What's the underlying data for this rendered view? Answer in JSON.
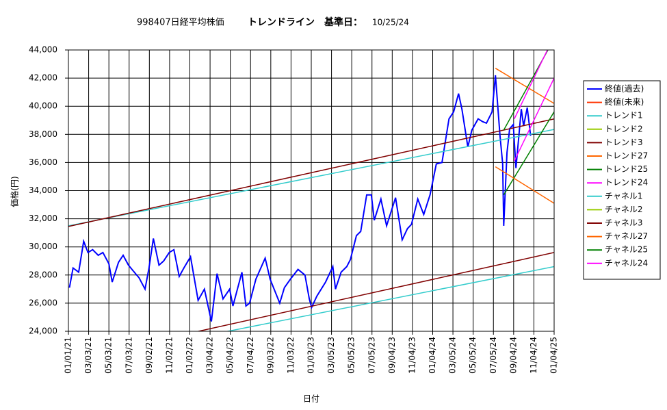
{
  "chart_data": {
    "type": "line",
    "title": "998407日経平均株価",
    "subtitle": "トレンドライン　基準日：",
    "base_date": "10/25/24",
    "x_label": "日付",
    "y_label": "価格(円)",
    "xlim": [
      "01/01/21",
      "01/04/25"
    ],
    "xticks": [
      "01/01/21",
      "03/03/21",
      "05/03/21",
      "07/03/21",
      "09/02/21",
      "11/02/21",
      "01/02/22",
      "03/04/22",
      "05/04/22",
      "07/04/22",
      "09/03/22",
      "11/03/22",
      "01/03/23",
      "03/05/23",
      "05/05/23",
      "07/05/23",
      "09/04/23",
      "11/04/23",
      "01/04/24",
      "03/05/24",
      "05/05/24",
      "07/05/24",
      "09/04/24",
      "11/04/24",
      "01/04/25"
    ],
    "ylim": [
      24000,
      44000
    ],
    "yticks": [
      {
        "value": 24000,
        "label": "24,000"
      },
      {
        "value": 26000,
        "label": "26,000"
      },
      {
        "value": 28000,
        "label": "28,000"
      },
      {
        "value": 30000,
        "label": "30,000"
      },
      {
        "value": 32000,
        "label": "32,000"
      },
      {
        "value": 34000,
        "label": "34,000"
      },
      {
        "value": 36000,
        "label": "36,000"
      },
      {
        "value": 38000,
        "label": "38,000"
      },
      {
        "value": 40000,
        "label": "40,000"
      },
      {
        "value": 42000,
        "label": "42,000"
      },
      {
        "value": 44000,
        "label": "44,000"
      }
    ],
    "grid": true,
    "legend": "right",
    "series": [
      {
        "name": "終値(過去)",
        "color": "#0000ff",
        "x": [
          "01/04/21",
          "01/15/21",
          "02/01/21",
          "02/16/21",
          "03/01/21",
          "03/15/21",
          "04/01/21",
          "04/15/21",
          "05/03/21",
          "05/13/21",
          "06/01/21",
          "06/15/21",
          "07/01/21",
          "07/15/21",
          "08/02/21",
          "08/20/21",
          "09/01/21",
          "09/14/21",
          "10/01/21",
          "10/15/21",
          "11/01/21",
          "11/15/21",
          "12/01/21",
          "12/15/21",
          "01/04/22",
          "01/27/22",
          "02/15/22",
          "03/08/22",
          "03/25/22",
          "04/12/22",
          "05/02/22",
          "05/12/22",
          "06/08/22",
          "06/20/22",
          "07/01/22",
          "07/20/22",
          "08/17/22",
          "09/01/22",
          "09/30/22",
          "10/14/22",
          "11/01/22",
          "11/24/22",
          "12/15/22",
          "12/28/22",
          "01/04/23",
          "01/20/23",
          "02/15/23",
          "03/09/23",
          "03/17/23",
          "04/03/23",
          "04/20/23",
          "05/01/23",
          "05/19/23",
          "06/01/23",
          "06/19/23",
          "07/03/23",
          "07/12/23",
          "08/01/23",
          "08/18/23",
          "09/14/23",
          "10/04/23",
          "10/20/23",
          "11/01/23",
          "11/20/23",
          "12/08/23",
          "12/27/23",
          "01/15/24",
          "02/01/24",
          "02/22/24",
          "03/07/24",
          "03/22/24",
          "04/01/24",
          "04/19/24",
          "05/01/24",
          "05/20/24",
          "06/03/24",
          "06/14/24",
          "07/01/24",
          "07/11/24",
          "07/25/24",
          "08/02/24",
          "08/05/24",
          "08/15/24",
          "08/23/24",
          "09/03/24",
          "09/11/24",
          "09/27/24",
          "10/04/24",
          "10/15/24",
          "10/25/24"
        ],
        "values": [
          27100,
          28500,
          28200,
          30400,
          29600,
          29800,
          29400,
          29600,
          28800,
          27500,
          28900,
          29400,
          28700,
          28300,
          27800,
          27000,
          28500,
          30600,
          28700,
          29000,
          29600,
          29800,
          27900,
          28500,
          29300,
          26200,
          27000,
          24700,
          28100,
          26300,
          27000,
          25800,
          28200,
          25800,
          26000,
          27700,
          29200,
          27700,
          26000,
          27100,
          27700,
          28400,
          28000,
          26300,
          25700,
          26500,
          27500,
          28600,
          27000,
          28200,
          28600,
          29100,
          30800,
          31100,
          33700,
          33700,
          31900,
          33400,
          31500,
          33500,
          30500,
          31300,
          31600,
          33400,
          32300,
          33700,
          35900,
          36000,
          39100,
          39600,
          40900,
          39800,
          37100,
          38300,
          39100,
          38900,
          38800,
          39600,
          42200,
          37900,
          35900,
          31500,
          36700,
          38400,
          38700,
          35600,
          39800,
          38600,
          39900,
          37900
        ]
      },
      {
        "name": "終値(未来)",
        "color": "#ff3300",
        "x": [],
        "values": []
      },
      {
        "name": "トレンド1",
        "color": "#33cccc",
        "x": [
          "01/01/21",
          "01/04/25"
        ],
        "values": [
          31500,
          38350
        ]
      },
      {
        "name": "トレンド2",
        "color": "#99cc00",
        "x": [],
        "values": []
      },
      {
        "name": "トレンド3",
        "color": "#800000",
        "x": [
          "01/01/21",
          "01/04/25"
        ],
        "values": [
          31450,
          39100
        ]
      },
      {
        "name": "トレンド27",
        "color": "#ff6600",
        "x": [
          "07/11/24",
          "01/04/25"
        ],
        "values": [
          42700,
          40200
        ]
      },
      {
        "name": "トレンド25",
        "color": "#008000",
        "x": [
          "08/05/24",
          "01/04/25"
        ],
        "values": [
          33700,
          39600
        ]
      },
      {
        "name": "トレンド24",
        "color": "#ff00ff",
        "x": [
          "09/06/24",
          "01/04/25"
        ],
        "values": [
          36100,
          42000
        ]
      },
      {
        "name": "チャネル1",
        "color": "#33cccc",
        "x": [
          "01/01/21",
          "01/04/25"
        ],
        "values": [
          21750,
          28600
        ]
      },
      {
        "name": "チャネル2",
        "color": "#99cc00",
        "x": [],
        "values": []
      },
      {
        "name": "チャネル3",
        "color": "#800000",
        "x": [
          "01/01/21",
          "01/04/25"
        ],
        "values": [
          21950,
          29600
        ]
      },
      {
        "name": "チャネル27",
        "color": "#ff6600",
        "x": [
          "07/11/24",
          "01/04/25"
        ],
        "values": [
          35700,
          33100
        ]
      },
      {
        "name": "チャネル25",
        "color": "#008000",
        "x": [
          "08/05/24",
          "01/04/25"
        ],
        "values": [
          38300,
          44800
        ]
      },
      {
        "name": "チャネル24",
        "color": "#ff00ff",
        "x": [
          "09/06/24",
          "01/04/25"
        ],
        "values": [
          39100,
          45000
        ]
      }
    ]
  }
}
